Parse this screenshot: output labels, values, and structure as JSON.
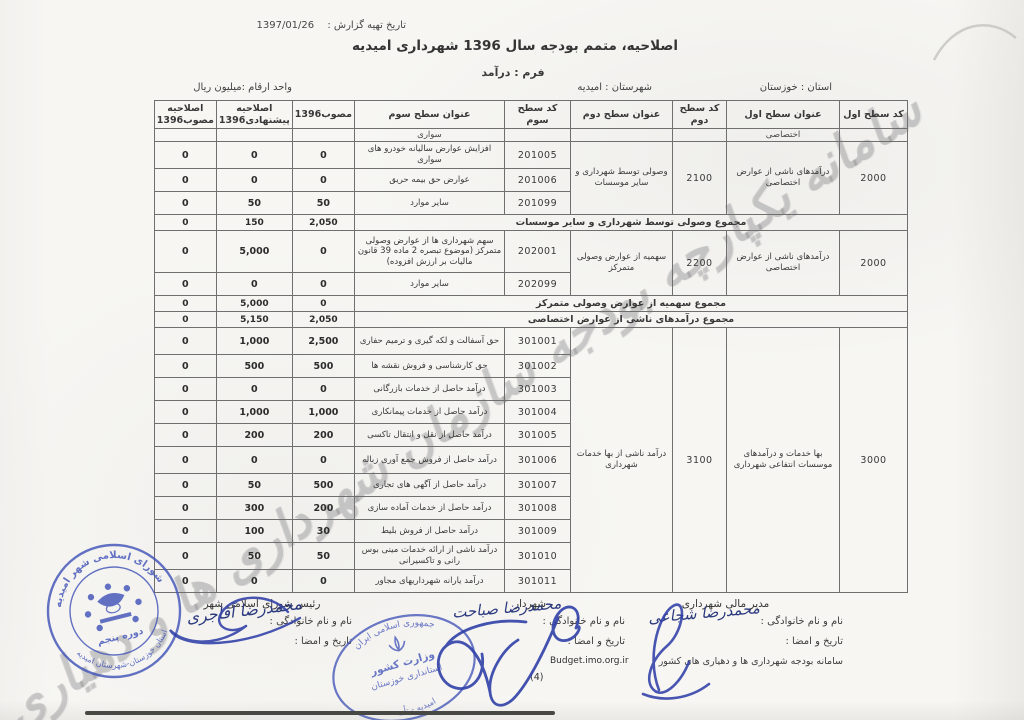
{
  "header": {
    "report_date_label": "تاریخ تهیه گزارش :",
    "report_date_value": "1397/01/26",
    "title": "اصلاحیه، متمم بودجه سال  1396 شهرداری  امیدیه",
    "form_label": "فرم : درآمد",
    "province": "استان : خوزستان",
    "county": "شهرستان : امیدیه",
    "unit": "واحد ارقام :میلیون ریال"
  },
  "watermark_text": "سامانه یکپارچه بودجه سازمان شهرداری ها و دهیاری ها",
  "table": {
    "headers": [
      "کد سطح اول",
      "عنوان سطح اول",
      "کد سطح دوم",
      "عنوان سطح دوم",
      "کد سطح سوم",
      "عنوان سطح سوم",
      "مصوب1396",
      "اصلاحیه پیشنهادی1396",
      "اصلاحیه مصوب1396"
    ],
    "sections": [
      {
        "type": "subheader",
        "level1_title": "اختصاصی",
        "level3_title": "سواری"
      },
      {
        "type": "group",
        "code1": "2000",
        "title1": "درآمدهای ناشی از عوارض اختصاصی",
        "code2": "2100",
        "title2": "وصولی توسط شهرداری و سایر موسسات",
        "rows": [
          {
            "code3": "201005",
            "title3": "افزایش عوارض سالیانه خودرو های سواری",
            "approved": "0",
            "proposed": "0",
            "amendment": "0"
          },
          {
            "code3": "201006",
            "title3": "عوارض حق بیمه حریق",
            "approved": "0",
            "proposed": "0",
            "amendment": "0"
          },
          {
            "code3": "201099",
            "title3": "سایر موارد",
            "approved": "50",
            "proposed": "50",
            "amendment": "0"
          }
        ]
      },
      {
        "type": "total",
        "label": "مجموع وصولی توسط شهرداری و سایر موسسات",
        "approved": "2,050",
        "proposed": "150",
        "amendment": "0"
      },
      {
        "type": "group",
        "code1": "2000",
        "title1": "درآمدهای ناشی از عوارض اختصاصی",
        "code2": "2200",
        "title2": "سهمیه از عوارض وصولی متمرکز",
        "rows": [
          {
            "code3": "202001",
            "title3": "سهم شهرداری ها از عوارض وصولی متمرکز (موضوع تبصره 2 ماده 39 قانون مالیات بر ارزش افزوده)",
            "approved": "0",
            "proposed": "5,000",
            "amendment": "0"
          },
          {
            "code3": "202099",
            "title3": "سایر موارد",
            "approved": "0",
            "proposed": "0",
            "amendment": "0"
          }
        ]
      },
      {
        "type": "total",
        "label": "مجموع سهمیه از عوارض وصولی متمرکز",
        "approved": "0",
        "proposed": "5,000",
        "amendment": "0"
      },
      {
        "type": "total",
        "label": "مجموع درآمدهای ناشی از عوارض اختصاصی",
        "approved": "2,050",
        "proposed": "5,150",
        "amendment": "0"
      },
      {
        "type": "group",
        "code1": "3000",
        "title1": "بها خدمات و درآمدهای موسسات انتفاعی شهرداری",
        "code2": "3100",
        "title2": "درآمد ناشی از بها خدمات شهرداری",
        "rows": [
          {
            "code3": "301001",
            "title3": "حق آسفالت و لکه گیری و ترمیم حفاری",
            "approved": "2,500",
            "proposed": "1,000",
            "amendment": "0"
          },
          {
            "code3": "301002",
            "title3": "حق کارشناسی و فروش نقشه ها",
            "approved": "500",
            "proposed": "500",
            "amendment": "0"
          },
          {
            "code3": "301003",
            "title3": "درآمد حاصل از خدمات بازرگانی",
            "approved": "0",
            "proposed": "0",
            "amendment": "0"
          },
          {
            "code3": "301004",
            "title3": "درآمد حاصل از خدمات پیمانکاری",
            "approved": "1,000",
            "proposed": "1,000",
            "amendment": "0"
          },
          {
            "code3": "301005",
            "title3": "درآمد حاصل از نقل و انتقال تاکسی",
            "approved": "200",
            "proposed": "200",
            "amendment": "0"
          },
          {
            "code3": "301006",
            "title3": "درآمد حاصل از فروش جمع آوری زباله",
            "approved": "0",
            "proposed": "0",
            "amendment": "0"
          },
          {
            "code3": "301007",
            "title3": "درآمد حاصل از آگهی های تجاری",
            "approved": "500",
            "proposed": "50",
            "amendment": "0"
          },
          {
            "code3": "301008",
            "title3": "درآمد حاصل از خدمات آماده سازی",
            "approved": "200",
            "proposed": "300",
            "amendment": "0"
          },
          {
            "code3": "301009",
            "title3": "درآمد حاصل از فروش بلیط",
            "approved": "30",
            "proposed": "100",
            "amendment": "0"
          },
          {
            "code3": "301010",
            "title3": "درآمد ناشی از ارائه خدمات مینی بوس رانی و تاکسیرانی",
            "approved": "50",
            "proposed": "50",
            "amendment": "0"
          },
          {
            "code3": "301011",
            "title3": "درآمد یارانه شهرداریهای مجاور",
            "approved": "0",
            "proposed": "0",
            "amendment": "0"
          }
        ]
      }
    ]
  },
  "signatures": {
    "financial_manager": {
      "role": "مدیر مالی شهرداری",
      "name_label": "نام و نام خانوادگی :",
      "handwritten_name": "محمدرضا شجاعی",
      "date_label": "تاریخ و امضا :",
      "system_note": "سامانه بودجه شهرداری ها و دهیاری های کشور"
    },
    "mayor": {
      "role": "شهردار",
      "name_label": "نام و نام خانوادگی :",
      "handwritten_name": "محمدرضا صباحت",
      "date_label": "تاریخ و امضا :",
      "url": "Budget.imo.org.ir",
      "page_number": "(4)"
    },
    "council_head": {
      "role": "رئیس شورای اسلامی شهر",
      "name_label": "نام و نام خانوادگی :",
      "handwritten_name": "محمدرضا آقاجری",
      "date_label": "تاریخ و امضا :"
    }
  },
  "stamps": {
    "council": {
      "top_text": "شورای اسلامی شهر امیدیه",
      "bottom_text": "استان خوزستان-شهرستان امیدیه",
      "center_text": "دوره پنجم"
    },
    "governorate": {
      "top_text": "جمهوری اسلامی ایران",
      "line1": "وزارت کشور",
      "line2": "استانداری خوزستان",
      "bottom_text": "امیدیه - تأیید"
    }
  }
}
